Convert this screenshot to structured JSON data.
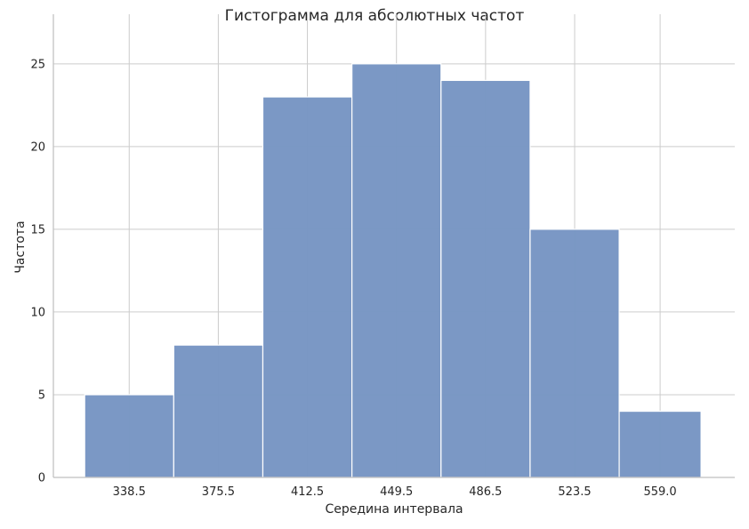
{
  "chart_data": {
    "type": "bar",
    "title": "Гистограмма для абсолютных частот",
    "xlabel": "Середина интервала",
    "ylabel": "Частота",
    "categories": [
      "338.5",
      "375.5",
      "412.5",
      "449.5",
      "486.5",
      "523.5",
      "559.0"
    ],
    "values": [
      5,
      8,
      23,
      25,
      24,
      15,
      4
    ],
    "bar_edges": [
      320,
      357,
      394,
      431,
      468,
      505,
      542,
      576
    ],
    "xlim": [
      307,
      590
    ],
    "ylim": [
      0,
      28
    ],
    "yticks": [
      0,
      5,
      10,
      15,
      20,
      25
    ],
    "grid": true,
    "bar_color": "#7896c4",
    "grid_color": "#cccccc",
    "axis_color": "#bfbfbf"
  }
}
